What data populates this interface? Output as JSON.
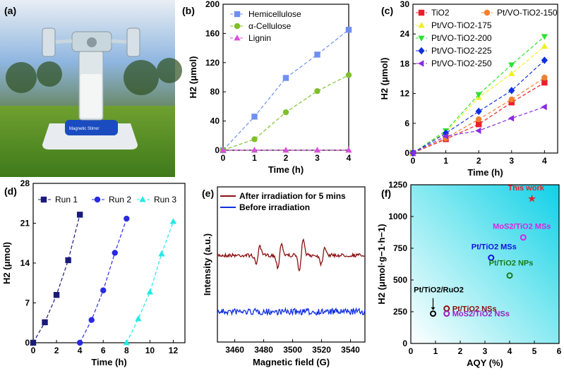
{
  "panel_labels": [
    "(a)",
    "(b)",
    "(c)",
    "(d)",
    "(e)",
    "(f)"
  ],
  "photo": {
    "badge_text": "Magnetic Stirrer"
  },
  "chart_data": [
    {
      "panel": "(b)",
      "type": "line",
      "xlabel": "Time (h)",
      "ylabel": "H2 (μmol)",
      "xlim": [
        0,
        4
      ],
      "ylim": [
        0,
        200
      ],
      "xticks": [
        0,
        1,
        2,
        3,
        4
      ],
      "yticks": [
        0,
        40,
        80,
        120,
        160,
        200
      ],
      "x": [
        0,
        1,
        2,
        3,
        4
      ],
      "legend_position": "top-left",
      "series": [
        {
          "name": "Hemicellulose",
          "marker": "square",
          "color": "#6f8ff0",
          "values": [
            0,
            46,
            99,
            131,
            165
          ]
        },
        {
          "name": "α-Cellulose",
          "marker": "circle",
          "color": "#7fbf2a",
          "values": [
            0,
            15,
            52,
            81,
            103
          ]
        },
        {
          "name": "Lignin",
          "marker": "triangle",
          "color": "#d94fd9",
          "values": [
            0,
            0,
            0,
            0,
            0
          ]
        }
      ]
    },
    {
      "panel": "(c)",
      "type": "line",
      "xlabel": "Time (h)",
      "ylabel": "H2 (μmol)",
      "xlim": [
        0,
        4.4
      ],
      "ylim": [
        0,
        30
      ],
      "xticks": [
        0,
        1,
        2,
        3,
        4
      ],
      "yticks": [
        0,
        6,
        12,
        18,
        24,
        30
      ],
      "x": [
        0,
        1,
        2,
        3,
        4
      ],
      "legend_position": "top-left",
      "series": [
        {
          "name": "TiO2",
          "marker": "square",
          "color": "#e8202a",
          "values": [
            0,
            2.8,
            5.8,
            10.2,
            14.2
          ]
        },
        {
          "name": "Pt/VO-TiO2-150",
          "marker": "circle",
          "color": "#f08030",
          "values": [
            0,
            3.0,
            6.8,
            10.8,
            15.2
          ]
        },
        {
          "name": "Pt/VO-TiO2-175",
          "marker": "triangle",
          "color": "#f0f020",
          "values": [
            0,
            4.2,
            11.2,
            16.0,
            21.5
          ]
        },
        {
          "name": "Pt/VO-TiO2-200",
          "marker": "triangle-down",
          "color": "#2ee02e",
          "values": [
            0,
            4.5,
            11.8,
            17.8,
            23.5
          ]
        },
        {
          "name": "Pt/VO-TiO2-225",
          "marker": "diamond",
          "color": "#1030e0",
          "values": [
            0,
            4.0,
            8.4,
            12.6,
            18.7
          ]
        },
        {
          "name": "Pt/VO-TiO2-250",
          "marker": "triangle-left",
          "color": "#8a2be2",
          "values": [
            0,
            3.4,
            4.5,
            7.0,
            9.3
          ]
        }
      ]
    },
    {
      "panel": "(d)",
      "type": "line",
      "xlabel": "Time (h)",
      "ylabel": "H2 (μmol)",
      "xlim": [
        0,
        13
      ],
      "ylim": [
        0,
        28
      ],
      "xticks": [
        0,
        2,
        4,
        6,
        8,
        10,
        12
      ],
      "yticks": [
        0,
        7,
        14,
        21,
        28
      ],
      "legend_position": "top",
      "series": [
        {
          "name": "Run 1",
          "marker": "square",
          "color": "#1a1a7a",
          "x": [
            0,
            1,
            2,
            3,
            4
          ],
          "values": [
            0,
            3.6,
            8.4,
            14.5,
            22.5
          ]
        },
        {
          "name": "Run 2",
          "marker": "circle",
          "color": "#2a2ae0",
          "x": [
            4,
            5,
            6,
            7,
            8
          ],
          "values": [
            0,
            4.0,
            9.2,
            15.8,
            21.8
          ]
        },
        {
          "name": "Run 3",
          "marker": "triangle",
          "color": "#25e8e8",
          "x": [
            8,
            9,
            10,
            11,
            12
          ],
          "values": [
            0,
            4.2,
            8.9,
            15.6,
            21.3
          ]
        }
      ]
    },
    {
      "panel": "(e)",
      "type": "line",
      "xlabel": "Magnetic field (G)",
      "ylabel": "Intensity (a.u.)",
      "xlim": [
        3448,
        3550
      ],
      "xticks": [
        3460,
        3480,
        3500,
        3520,
        3540
      ],
      "legend_position": "top",
      "series": [
        {
          "name": "After irradiation for 5 mins",
          "color": "#8b1010"
        },
        {
          "name": "Before irradiation",
          "color": "#1030e0"
        }
      ]
    },
    {
      "panel": "(f)",
      "type": "scatter",
      "xlabel": "AQY (%)",
      "ylabel": "H2 (μmol·g−1·h−1)",
      "xlim": [
        0,
        6
      ],
      "ylim": [
        0,
        1250
      ],
      "xticks": [
        0,
        1,
        2,
        3,
        4,
        5,
        6
      ],
      "yticks": [
        0,
        250,
        500,
        750,
        1000,
        1250
      ],
      "points": [
        {
          "label": "This work",
          "x": 4.9,
          "y": 1140,
          "marker": "star",
          "color": "#e8202a"
        },
        {
          "label": "MoS2/TiO2 MSs",
          "x": 4.55,
          "y": 835,
          "marker": "circle",
          "color": "#e020e0"
        },
        {
          "label": "Pt/TiO2 MSs",
          "x": 3.25,
          "y": 675,
          "marker": "circle",
          "color": "#1010e0"
        },
        {
          "label": "Pt/TiO2 NPs",
          "x": 4.0,
          "y": 535,
          "marker": "circle",
          "color": "#1a7a1a"
        },
        {
          "label": "Pt/TiO2/RuO2",
          "x": 0.9,
          "y": 235,
          "marker": "circle",
          "color": "#000000"
        },
        {
          "label": "Pt/TiO2 NSs",
          "x": 1.45,
          "y": 275,
          "marker": "circle",
          "color": "#8b1010"
        },
        {
          "label": "MoS2/TiO2 NSs",
          "x": 1.45,
          "y": 235,
          "marker": "circle",
          "color": "#9a20c0"
        }
      ]
    }
  ]
}
